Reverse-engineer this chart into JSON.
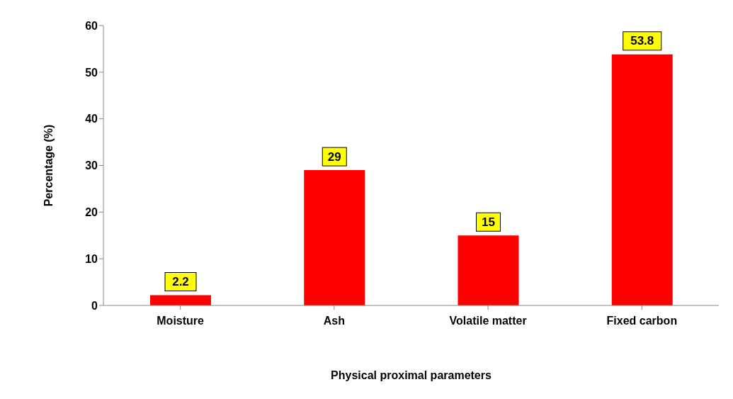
{
  "chart_data": {
    "type": "bar",
    "xlabel": "Physical proximal parameters",
    "ylabel": "Percentage (%)",
    "categories": [
      "Moisture",
      "Ash",
      "Volatile matter",
      "Fixed carbon"
    ],
    "values": [
      2.2,
      29,
      15,
      53.8
    ],
    "color": "#ff0000",
    "ylim": [
      0,
      60
    ],
    "yticks": [
      0,
      10,
      20,
      30,
      40,
      50,
      60
    ],
    "grid": false,
    "data_labels": true
  }
}
